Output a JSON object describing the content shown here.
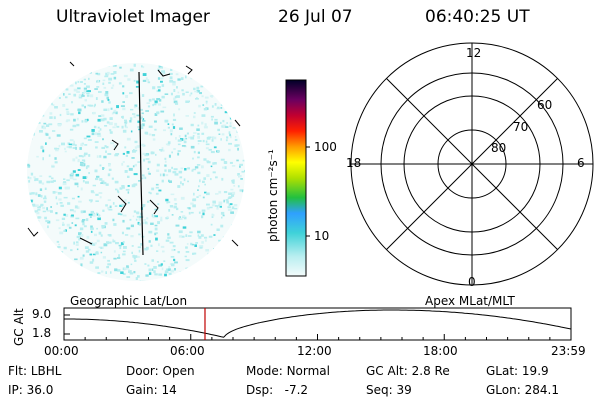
{
  "header": {
    "title": "Ultraviolet Imager",
    "date": "26 Jul 07",
    "time": "06:40:25 UT"
  },
  "colorbar": {
    "label": "photon cm⁻²s⁻¹",
    "ticks": [
      "100",
      "10"
    ]
  },
  "polar": {
    "mlt_labels": {
      "top": "12",
      "left": "18",
      "right": "6",
      "bottom": "0"
    },
    "lat_labels": [
      "60",
      "70",
      "80"
    ]
  },
  "timeline": {
    "left_label": "Geographic Lat/Lon",
    "right_label": "Apex MLat/MLT",
    "y_axis_title": "GC Alt",
    "y_max_label": "9.0",
    "y_min_label": "1.8",
    "time_ticks": [
      "00:00",
      "06:00",
      "12:00",
      "18:00",
      "23:59"
    ],
    "marker_time_hours": 6.674
  },
  "info": {
    "row1": [
      {
        "label": "Flt:",
        "value": "LBHL"
      },
      {
        "label": "Door:",
        "value": "Open"
      },
      {
        "label": "Mode:",
        "value": "Normal"
      },
      {
        "label": "GC Alt:",
        "value": "2.8 Re"
      },
      {
        "label": "GLat:",
        "value": "19.9"
      }
    ],
    "row2": [
      {
        "label": "IP:",
        "value": "36.0"
      },
      {
        "label": "Gain:",
        "value": "14"
      },
      {
        "label": "Dsp:",
        "value": "-7.2"
      },
      {
        "label": "Seq:",
        "value": "39"
      },
      {
        "label": "GLon:",
        "value": "284.1"
      }
    ]
  },
  "colors": {
    "marker": "#c00000",
    "image_cyan": "#3fd2d8",
    "image_light": "#b9eef0"
  }
}
